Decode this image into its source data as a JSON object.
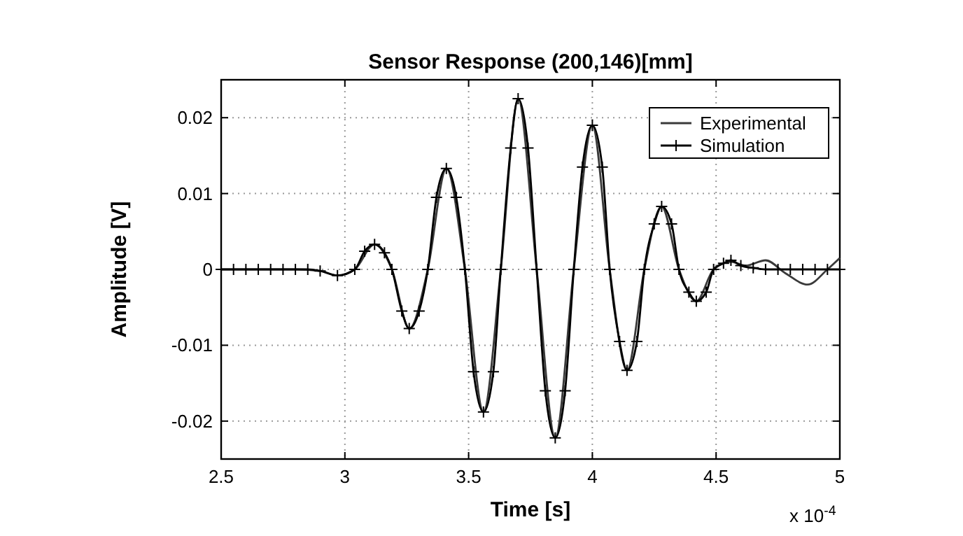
{
  "chart_data": {
    "type": "line",
    "title": "Sensor Response  (200,146)[mm]",
    "xlabel": "Time [s]",
    "ylabel": "Amplitude [V]",
    "annotations": [
      "x 10$^{-4}$"
    ],
    "xlim": [
      2.5,
      5
    ],
    "xticks": [
      2.5,
      3,
      3.5,
      4,
      4.5,
      5
    ],
    "ylim": [
      -0.025,
      0.025
    ],
    "yticks": [
      -0.02,
      -0.01,
      0,
      0.01,
      0.02
    ],
    "grid": true,
    "legend": "top right",
    "series": [
      {
        "name": "Experimental",
        "color": "#3a3a3a",
        "marker": "none",
        "x": [
          2.5,
          2.8,
          2.9,
          2.97,
          3.04,
          3.12,
          3.19,
          3.26,
          3.335,
          3.41,
          3.485,
          3.56,
          3.63,
          3.7,
          3.775,
          3.85,
          3.925,
          4,
          4.07,
          4.14,
          4.21,
          4.28,
          4.35,
          4.42,
          4.49,
          4.56,
          4.62,
          4.7,
          4.78,
          4.87,
          4.95,
          5
        ],
        "values": [
          0,
          0,
          -0.0002,
          -0.0008,
          0,
          0.0033,
          0,
          -0.0078,
          0,
          0.0133,
          0,
          -0.0188,
          0,
          0.0225,
          0,
          -0.0222,
          0,
          0.019,
          0,
          -0.0133,
          0,
          0.0083,
          0,
          -0.0042,
          0,
          0.001,
          0.0005,
          0.0012,
          -0.0005,
          -0.002,
          0,
          0.0015
        ]
      },
      {
        "name": "Simulation",
        "color": "#000000",
        "marker": "cross",
        "x": [
          2.5,
          2.55,
          2.6,
          2.65,
          2.7,
          2.75,
          2.8,
          2.85,
          2.9,
          2.97,
          3.04,
          3.08,
          3.12,
          3.16,
          3.19,
          3.23,
          3.26,
          3.3,
          3.335,
          3.37,
          3.41,
          3.45,
          3.485,
          3.52,
          3.56,
          3.6,
          3.63,
          3.67,
          3.7,
          3.74,
          3.775,
          3.81,
          3.85,
          3.89,
          3.925,
          3.96,
          4,
          4.04,
          4.07,
          4.11,
          4.14,
          4.18,
          4.21,
          4.25,
          4.28,
          4.32,
          4.35,
          4.39,
          4.42,
          4.46,
          4.49,
          4.53,
          4.56,
          4.6,
          4.65,
          4.7,
          4.75,
          4.8,
          4.85,
          4.9,
          4.95,
          5
        ],
        "values": [
          0,
          0,
          0,
          0,
          0,
          0,
          0,
          0,
          -0.0002,
          -0.0008,
          0,
          0.0024,
          0.0033,
          0.0022,
          0,
          -0.0055,
          -0.0078,
          -0.0055,
          0,
          0.0095,
          0.0133,
          0.0095,
          0,
          -0.0135,
          -0.0188,
          -0.0135,
          0,
          0.016,
          0.0225,
          0.016,
          0,
          -0.016,
          -0.0222,
          -0.016,
          0,
          0.0135,
          0.019,
          0.0135,
          0,
          -0.0095,
          -0.0133,
          -0.0095,
          0,
          0.006,
          0.0083,
          0.006,
          0,
          -0.003,
          -0.0042,
          -0.003,
          0,
          0.0008,
          0.0012,
          0.0005,
          0.0002,
          0,
          0,
          0,
          0,
          0,
          0,
          0
        ]
      }
    ]
  }
}
